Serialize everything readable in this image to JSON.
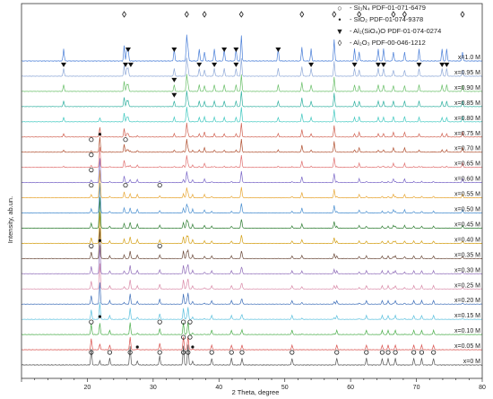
{
  "legend": [
    {
      "icon": "open-circle-icon",
      "symbol": "○",
      "label": "- Si₃N₄ PDF-01-071-6479"
    },
    {
      "icon": "filled-dot-icon",
      "symbol": "•",
      "label": "- SiO₂ PDF-01-074-9378"
    },
    {
      "icon": "filled-triangle-icon",
      "symbol": "▼",
      "label": "- Al₂(SiO₄)O PDF-01-074-0274"
    },
    {
      "icon": "open-diamond-icon",
      "symbol": "◊",
      "label": "- Al₂O₃ PDF-00-046-1212"
    }
  ],
  "chart_data": {
    "type": "line",
    "xlabel": "2 Theta, degree",
    "ylabel": "Intensity, ab.un.",
    "xlim": [
      10,
      80
    ],
    "x_ticks": [
      20,
      30,
      40,
      50,
      60,
      70,
      80
    ],
    "grid": false,
    "legend_position": "top-right",
    "series": [
      {
        "name": "x=0 M",
        "color": "#555555"
      },
      {
        "name": "x=0.05 M",
        "color": "#d9534f"
      },
      {
        "name": "x=0.10 M",
        "color": "#4cae4c"
      },
      {
        "name": "x=0.15 M",
        "color": "#5bc0de"
      },
      {
        "name": "x=0.20 M",
        "color": "#3c6db8"
      },
      {
        "name": "x=0.25 M",
        "color": "#d98aa8"
      },
      {
        "name": "x=0.30 M",
        "color": "#8e6bb8"
      },
      {
        "name": "x=0.35 M",
        "color": "#6b4a3a"
      },
      {
        "name": "x=0.40 M",
        "color": "#d4a017"
      },
      {
        "name": "x=0.45 M",
        "color": "#2e7d32"
      },
      {
        "name": "x=0.50 M",
        "color": "#4a8fd0"
      },
      {
        "name": "x=0.55 M",
        "color": "#e8a838"
      },
      {
        "name": "x=0.60 M",
        "color": "#7b68c8"
      },
      {
        "name": "x=0.65 M",
        "color": "#e07070"
      },
      {
        "name": "x=0.70 M",
        "color": "#b05030"
      },
      {
        "name": "x=0.75 M",
        "color": "#d06050"
      },
      {
        "name": "x=0.80 M",
        "color": "#40c8c0"
      },
      {
        "name": "x=0.85 M",
        "color": "#30b0a0"
      },
      {
        "name": "x=0.90 M",
        "color": "#6abf69"
      },
      {
        "name": "x=0.95 M",
        "color": "#8fa9d8"
      },
      {
        "name": "x=1.0 M",
        "color": "#4a7fd8"
      }
    ],
    "peaks": {
      "si3n4": [
        20.6,
        23.4,
        26.5,
        31.0,
        34.6,
        35.3,
        38.9,
        41.9,
        43.5,
        51.1,
        57.9,
        62.4,
        64.8,
        65.7,
        66.8,
        69.6,
        70.8,
        72.6
      ],
      "sio2": [
        21.9,
        27.6,
        36.0
      ],
      "mullite": [
        16.4,
        26.0,
        26.2,
        33.2,
        35.3,
        37.0,
        39.3,
        40.8,
        42.6,
        49.0,
        54.0,
        60.6,
        64.2,
        65.0,
        70.4,
        73.9,
        74.6
      ],
      "alumina": [
        25.6,
        35.1,
        37.8,
        43.4,
        52.6,
        57.5,
        61.3,
        66.5,
        68.2,
        77.0
      ]
    },
    "markers": [
      {
        "series": "x=0 M",
        "type": "si3n4",
        "x": [
          20.6,
          23.4,
          26.5,
          31.0,
          34.6,
          35.3,
          38.9,
          41.9,
          43.5,
          51.1,
          57.9,
          62.4,
          64.8,
          65.7,
          66.8,
          69.6,
          70.8,
          72.6
        ]
      },
      {
        "series": "x=0 M",
        "type": "sio2",
        "x": [
          27.6,
          36.0
        ]
      },
      {
        "series": "x=0.05 M",
        "type": "si3n4",
        "x": [
          34.6,
          35.6
        ]
      },
      {
        "series": "x=0.10 M",
        "type": "si3n4",
        "x": [
          20.6,
          31.0,
          34.6,
          35.6
        ]
      },
      {
        "series": "x=0.10 M",
        "type": "sio2",
        "x": [
          21.9
        ]
      },
      {
        "series": "x=0.35 M",
        "type": "si3n4",
        "x": [
          20.6,
          31.0
        ]
      },
      {
        "series": "x=0.35 M",
        "type": "sio2",
        "x": [
          21.9
        ]
      },
      {
        "series": "x=0.55 M",
        "type": "si3n4",
        "x": [
          20.6,
          25.8,
          31.0
        ]
      },
      {
        "series": "x=0.60 M",
        "type": "si3n4",
        "x": [
          20.6
        ]
      },
      {
        "series": "x=0.65 M",
        "type": "si3n4",
        "x": [
          20.6
        ]
      },
      {
        "series": "x=0.70 M",
        "type": "si3n4",
        "x": [
          20.6,
          25.8
        ]
      },
      {
        "series": "x=0.70 M",
        "type": "sio2",
        "x": [
          21.9
        ]
      },
      {
        "series": "x=0.80 M",
        "type": "mullite",
        "x": [
          33.2
        ]
      },
      {
        "series": "x=0.85 M",
        "type": "mullite",
        "x": [
          33.2
        ]
      },
      {
        "series": "x=0.90 M",
        "type": "mullite",
        "x": [
          16.4,
          25.8,
          26.6,
          37.0,
          39.3,
          42.6,
          54.0,
          60.6,
          64.2,
          65.0,
          70.4,
          73.9,
          74.6
        ]
      },
      {
        "series": "x=0.95 M",
        "type": "mullite",
        "x": [
          26.2,
          33.2,
          40.8,
          42.6,
          49.0
        ]
      },
      {
        "series": "x=1.0 M",
        "type": "alumina",
        "x": [
          25.6,
          35.1,
          37.8,
          43.4,
          52.6,
          57.5,
          61.3,
          66.5,
          68.2,
          77.0
        ]
      }
    ]
  }
}
